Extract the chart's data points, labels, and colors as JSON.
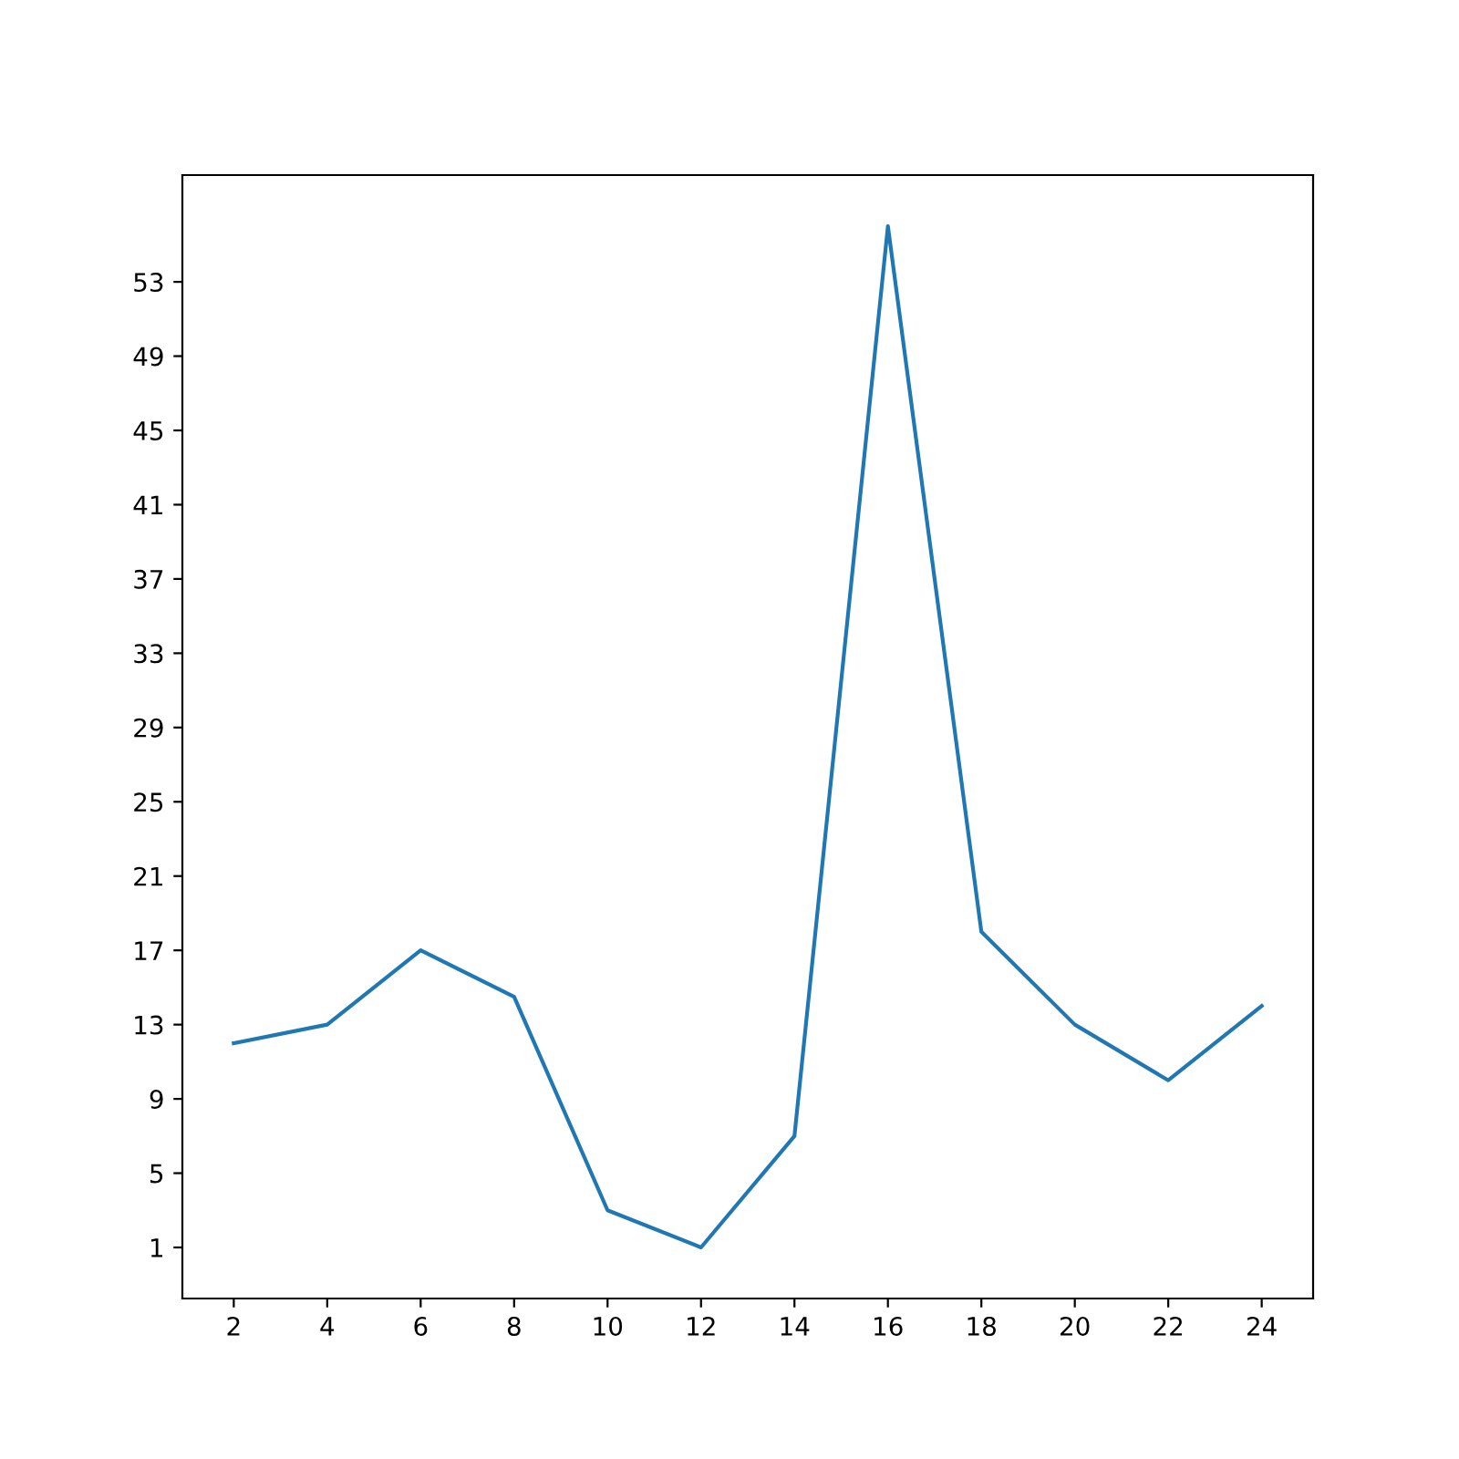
{
  "chart_data": {
    "type": "line",
    "x": [
      2,
      4,
      6,
      8,
      10,
      12,
      14,
      16,
      18,
      20,
      22,
      24
    ],
    "series": [
      {
        "color": "#1f77b4",
        "values": [
          12,
          13,
          17,
          14.5,
          3,
          1,
          7,
          56,
          18,
          13,
          10,
          14
        ]
      }
    ],
    "xlim": [
      0.9,
      25.1
    ],
    "ylim": [
      -1.75,
      58.75
    ],
    "xticks": [
      2,
      4,
      6,
      8,
      10,
      12,
      14,
      16,
      18,
      20,
      22,
      24
    ],
    "yticks": [
      1,
      5,
      9,
      13,
      17,
      21,
      25,
      29,
      33,
      37,
      41,
      45,
      49,
      53
    ],
    "grid": false
  }
}
